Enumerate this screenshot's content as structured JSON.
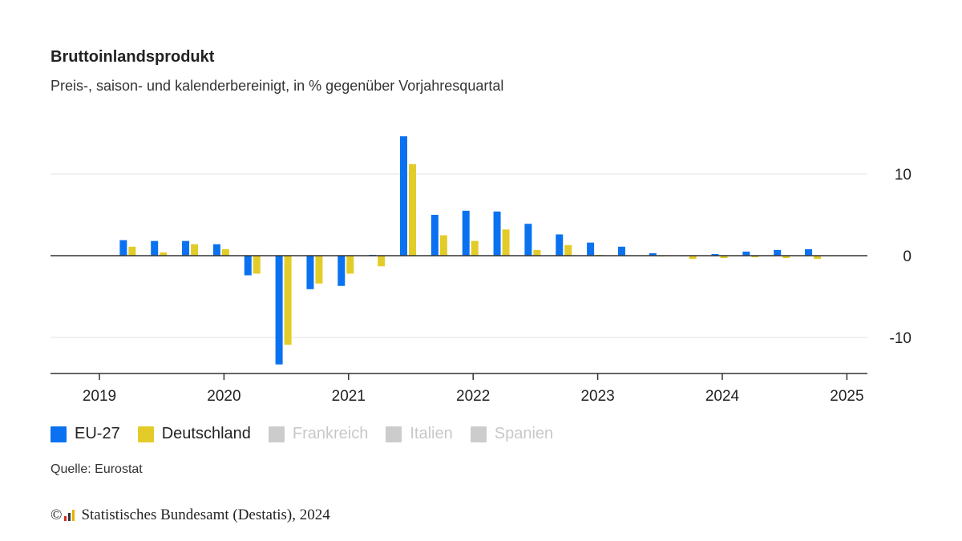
{
  "header": {
    "title": "Bruttoinlandsprodukt",
    "subtitle": "Preis-, saison- und kalenderbereinigt, in % gegenüber Vorjahresquartal"
  },
  "chart_data": {
    "type": "bar",
    "title": "Bruttoinlandsprodukt",
    "subtitle": "Preis-, saison- und kalenderbereinigt, in % gegenüber Vorjahresquartal",
    "x_start": 2019.0,
    "x_end": 2025.0,
    "x_ticks": [
      "2019",
      "2020",
      "2021",
      "2022",
      "2023",
      "2024",
      "2025"
    ],
    "y_ticks": [
      10,
      0,
      -10
    ],
    "ylim": [
      -14.5,
      14.5
    ],
    "yaxis_side": "right",
    "grid": true,
    "series": [
      {
        "name": "EU-27",
        "color": "#0a72f0",
        "active": true,
        "values": [
          1.9,
          1.8,
          1.8,
          1.4,
          -2.4,
          -13.3,
          -4.1,
          -3.7,
          0.1,
          14.6,
          5.0,
          5.5,
          5.4,
          3.9,
          2.6,
          1.6,
          1.1,
          0.3,
          0.0,
          0.2,
          0.5,
          0.7,
          0.8
        ]
      },
      {
        "name": "Deutschland",
        "color": "#e3cc29",
        "active": true,
        "values": [
          1.1,
          0.4,
          1.4,
          0.8,
          -2.2,
          -10.9,
          -3.4,
          -2.2,
          -1.3,
          11.2,
          2.5,
          1.8,
          3.2,
          0.7,
          1.3,
          0.1,
          0.0,
          -0.1,
          -0.4,
          -0.3,
          -0.2,
          -0.3,
          -0.4
        ]
      },
      {
        "name": "Frankreich",
        "color": "#cccccc",
        "active": false,
        "values": []
      },
      {
        "name": "Italien",
        "color": "#cccccc",
        "active": false,
        "values": []
      },
      {
        "name": "Spanien",
        "color": "#cccccc",
        "active": false,
        "values": []
      }
    ]
  },
  "footer": {
    "source": "Quelle: Eurostat",
    "copyright_symbol": "©",
    "copyright_text": "Statistisches Bundesamt (Destatis), 2024"
  }
}
